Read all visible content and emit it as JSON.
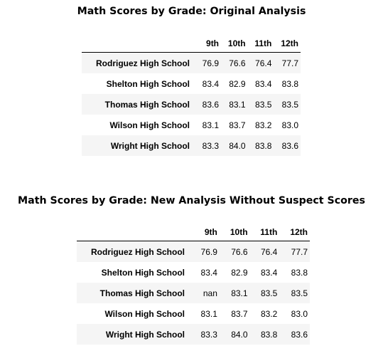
{
  "tables": [
    {
      "title": "Math Scores by Grade: Original Analysis",
      "columns": [
        "9th",
        "10th",
        "11th",
        "12th"
      ],
      "rows": [
        {
          "school": "Rodriguez High School",
          "values": [
            "76.9",
            "76.6",
            "76.4",
            "77.7"
          ]
        },
        {
          "school": "Shelton High School",
          "values": [
            "83.4",
            "82.9",
            "83.4",
            "83.8"
          ]
        },
        {
          "school": "Thomas High School",
          "values": [
            "83.6",
            "83.1",
            "83.5",
            "83.5"
          ]
        },
        {
          "school": "Wilson High School",
          "values": [
            "83.1",
            "83.7",
            "83.2",
            "83.0"
          ]
        },
        {
          "school": "Wright High School",
          "values": [
            "83.3",
            "84.0",
            "83.8",
            "83.6"
          ]
        }
      ]
    },
    {
      "title": "Math Scores by Grade: New Analysis Without Suspect Scores",
      "columns": [
        "9th",
        "10th",
        "11th",
        "12th"
      ],
      "rows": [
        {
          "school": "Rodriguez High School",
          "values": [
            "76.9",
            "76.6",
            "76.4",
            "77.7"
          ]
        },
        {
          "school": "Shelton High School",
          "values": [
            "83.4",
            "82.9",
            "83.4",
            "83.8"
          ]
        },
        {
          "school": "Thomas High School",
          "values": [
            "nan",
            "83.1",
            "83.5",
            "83.5"
          ]
        },
        {
          "school": "Wilson High School",
          "values": [
            "83.1",
            "83.7",
            "83.2",
            "83.0"
          ]
        },
        {
          "school": "Wright High School",
          "values": [
            "83.3",
            "84.0",
            "83.8",
            "83.6"
          ]
        }
      ]
    }
  ]
}
